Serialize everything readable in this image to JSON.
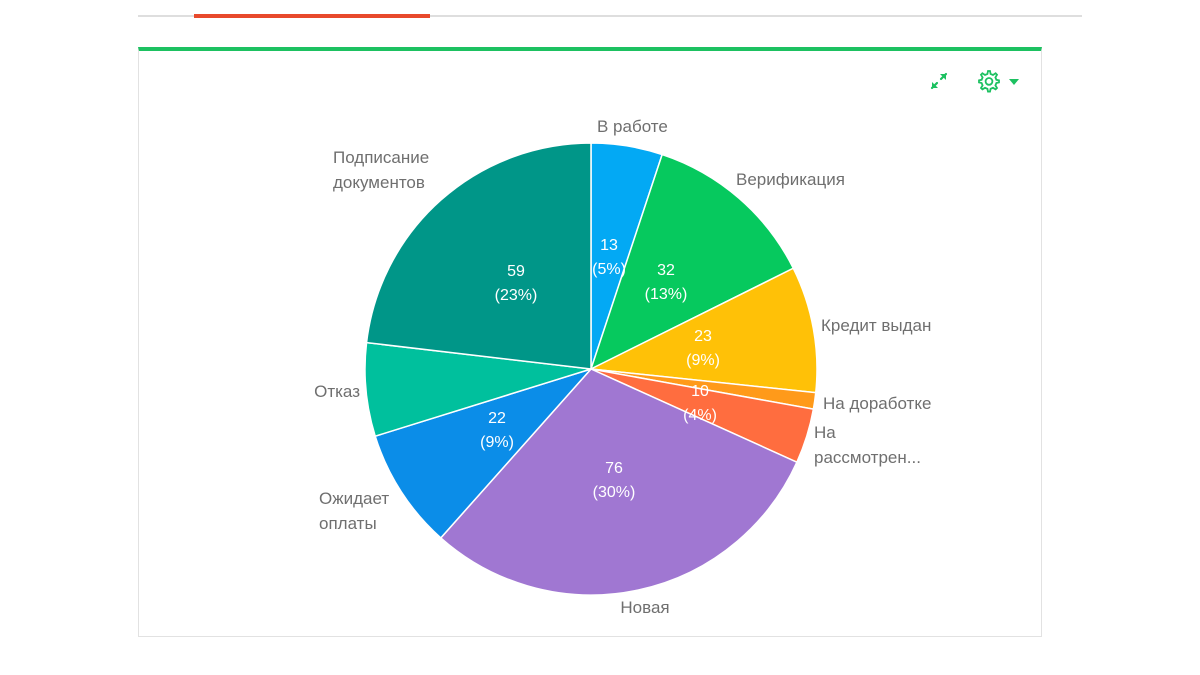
{
  "colors": {
    "panel_accent": "#1dc161",
    "tab_accent": "#e8492c",
    "icon_color": "#1dc161"
  },
  "toolbar": {
    "expand_icon": "expand-icon",
    "settings_icon": "gear-icon",
    "dropdown_icon": "caret-down-icon"
  },
  "chart_data": {
    "type": "pie",
    "start_angle_deg": 0,
    "direction": "clockwise",
    "slices": [
      {
        "label_lines": [
          "В работе"
        ],
        "value": 13,
        "value_label": "13",
        "percent_label": "(5%)",
        "color": "#03a9f4"
      },
      {
        "label_lines": [
          "Верификация"
        ],
        "value": 32,
        "value_label": "32",
        "percent_label": "(13%)",
        "color": "#06c95e"
      },
      {
        "label_lines": [
          "Кредит выдан"
        ],
        "value": 23,
        "value_label": "23",
        "percent_label": "(9%)",
        "color": "#ffc107"
      },
      {
        "label_lines": [
          "На доработке"
        ],
        "value": 3,
        "value_label": "",
        "percent_label": "",
        "color": "#ff9a1a"
      },
      {
        "label_lines": [
          "На",
          "рассмотрен..."
        ],
        "value": 10,
        "value_label": "10",
        "percent_label": "(4%)",
        "color": "#ff6d3f"
      },
      {
        "label_lines": [
          "Новая"
        ],
        "value": 76,
        "value_label": "76",
        "percent_label": "(30%)",
        "color": "#a077d2"
      },
      {
        "label_lines": [
          "Ожидает",
          "оплаты"
        ],
        "value": 22,
        "value_label": "22",
        "percent_label": "(9%)",
        "color": "#0b8de8"
      },
      {
        "label_lines": [
          "Отказ"
        ],
        "value": 17,
        "value_label": "",
        "percent_label": "",
        "color": "#00c09d"
      },
      {
        "label_lines": [
          "Подписание",
          "документов"
        ],
        "value": 59,
        "value_label": "59",
        "percent_label": "(23%)",
        "color": "#009688"
      }
    ]
  }
}
